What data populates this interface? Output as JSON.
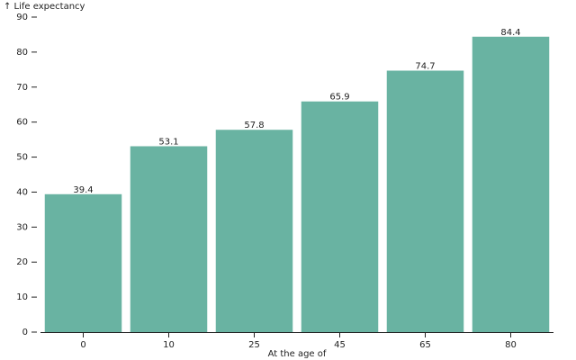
{
  "chart_data": {
    "type": "bar",
    "y_label": "↑ Life expectancy",
    "x_label": "At the age of",
    "categories": [
      "0",
      "10",
      "25",
      "45",
      "65",
      "80"
    ],
    "values": [
      39.4,
      53.1,
      57.8,
      65.9,
      74.7,
      84.4
    ],
    "color": "#69b3a2",
    "ylim": [
      0,
      90
    ],
    "yticks": [
      0,
      10,
      20,
      30,
      40,
      50,
      60,
      70,
      80,
      90
    ],
    "grid": false
  }
}
